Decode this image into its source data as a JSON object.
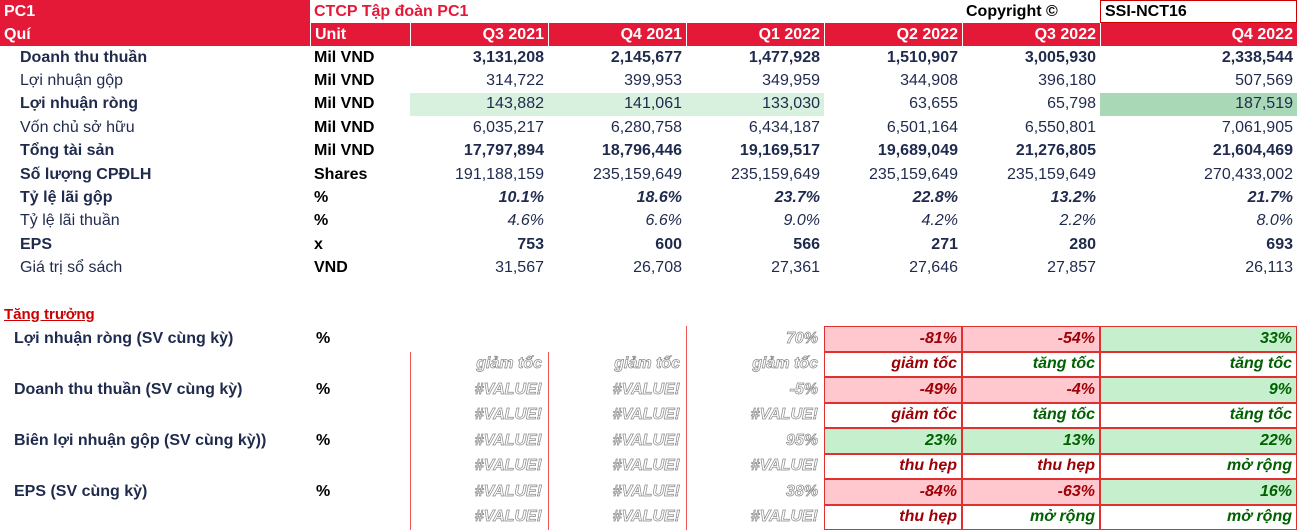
{
  "header": {
    "ticker": "PC1",
    "company": "CTCP Tập đoàn PC1",
    "copyright": "Copyright ©",
    "source": "SSI-NCT16"
  },
  "table": {
    "columns": [
      "Quí",
      "Unit",
      "Q3 2021",
      "Q4 2021",
      "Q1 2022",
      "Q2 2022",
      "Q3 2022",
      "Q4 2022"
    ],
    "rows": [
      [
        "Doanh thu thuần",
        "Mil VND",
        "3,131,208",
        "2,145,677",
        "1,477,928",
        "1,510,907",
        "3,005,930",
        "2,338,544"
      ],
      [
        "Lợi nhuận gộp",
        "Mil VND",
        "314,722",
        "399,953",
        "349,959",
        "344,908",
        "396,180",
        "507,569"
      ],
      [
        "Lợi nhuận ròng",
        "Mil VND",
        "143,882",
        "141,061",
        "133,030",
        "63,655",
        "65,798",
        "187,519"
      ],
      [
        "Vốn chủ sở hữu",
        "Mil VND",
        "6,035,217",
        "6,280,758",
        "6,434,187",
        "6,501,164",
        "6,550,801",
        "7,061,905"
      ],
      [
        "Tổng tài sản",
        "Mil VND",
        "17,797,894",
        "18,796,446",
        "19,169,517",
        "19,689,049",
        "21,276,805",
        "21,604,469"
      ],
      [
        "Số lượng CPĐLH",
        "Shares",
        "191,188,159",
        "235,159,649",
        "235,159,649",
        "235,159,649",
        "235,159,649",
        "270,433,002"
      ],
      [
        "Tỷ lệ lãi gộp",
        "%",
        "10.1%",
        "18.6%",
        "23.7%",
        "22.8%",
        "13.2%",
        "21.7%"
      ],
      [
        "Tỷ lệ lãi thuần",
        "%",
        "4.6%",
        "6.6%",
        "9.0%",
        "4.2%",
        "2.2%",
        "8.0%"
      ],
      [
        "EPS",
        "x",
        "753",
        "600",
        "566",
        "271",
        "280",
        "693"
      ],
      [
        "Giá trị sổ sách",
        "VND",
        "31,567",
        "26,708",
        "27,361",
        "27,646",
        "27,857",
        "26,113"
      ]
    ]
  },
  "growth": {
    "title": "Tăng trưởng",
    "rows": [
      {
        "cells": [
          "Lợi nhuận ròng (SV cùng kỳ)",
          "%",
          null,
          null,
          "70%",
          "-81%",
          "-54%",
          "33%"
        ],
        "colors": [
          "#9c0006",
          "#9c0006",
          "#006100"
        ]
      },
      {
        "cells": [
          null,
          null,
          "giảm tốc",
          "giảm tốc",
          "giảm tốc",
          "giảm tốc",
          "tăng tốc",
          "tăng tốc"
        ],
        "colors": [
          "#9c0006",
          "#006100",
          "#006100"
        ]
      },
      {
        "cells": [
          "Doanh thu thuần (SV cùng kỳ)",
          "%",
          "#VALUE!",
          "#VALUE!",
          "-5%",
          "-49%",
          "-4%",
          "9%"
        ],
        "colors": [
          "#9c0006",
          "#9c0006",
          "#006100"
        ]
      },
      {
        "cells": [
          null,
          null,
          "#VALUE!",
          "#VALUE!",
          "#VALUE!",
          "giảm tốc",
          "tăng tốc",
          "tăng tốc"
        ],
        "colors": [
          "#9c0006",
          "#006100",
          "#006100"
        ]
      },
      {
        "cells": [
          "Biên lợi nhuận gộp (SV cùng kỳ))",
          "%",
          "#VALUE!",
          "#VALUE!",
          "95%",
          "23%",
          "13%",
          "22%"
        ],
        "colors": [
          "#006100",
          "#006100",
          "#006100"
        ]
      },
      {
        "cells": [
          null,
          null,
          "#VALUE!",
          "#VALUE!",
          "#VALUE!",
          "thu hẹp",
          "thu hẹp",
          "mở rộng"
        ],
        "colors": [
          "#9c0006",
          "#9c0006",
          "#006100"
        ]
      },
      {
        "cells": [
          "EPS (SV cùng kỳ)",
          "%",
          "#VALUE!",
          "#VALUE!",
          "38%",
          "-84%",
          "-63%",
          "16%"
        ],
        "colors": [
          "#9c0006",
          "#9c0006",
          "#006100"
        ]
      },
      {
        "cells": [
          null,
          null,
          "#VALUE!",
          "#VALUE!",
          "#VALUE!",
          "thu hẹp",
          "mở rộng",
          "mở rộng"
        ],
        "colors": [
          "#9c0006",
          "#006100",
          "#006100"
        ]
      }
    ]
  }
}
